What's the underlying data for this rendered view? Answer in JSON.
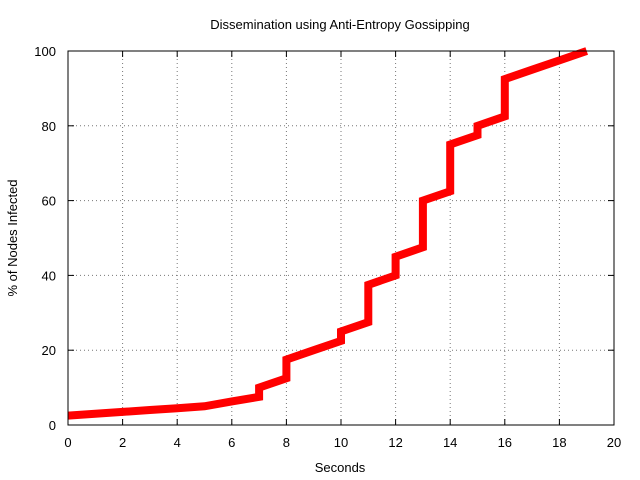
{
  "chart_data": {
    "type": "line",
    "title": "Dissemination using Anti-Entropy Gossipping",
    "xlabel": "Seconds",
    "ylabel": "% of Nodes Infected",
    "xlim": [
      0,
      20
    ],
    "ylim": [
      0,
      100
    ],
    "xticks": [
      "0",
      "2",
      "4",
      "6",
      "8",
      "10",
      "12",
      "14",
      "16",
      "18",
      "20"
    ],
    "yticks": [
      "0",
      "20",
      "40",
      "60",
      "80",
      "100"
    ],
    "grid": true,
    "legend": "none",
    "series": [
      {
        "color": "#ff0000",
        "x": [
          0,
          1,
          2,
          3,
          4,
          5,
          6,
          7,
          7,
          8,
          8,
          9,
          10,
          10,
          11,
          11,
          12,
          12,
          13,
          13,
          14,
          14,
          15,
          15,
          16,
          16,
          17,
          18,
          19
        ],
        "y": [
          2.5,
          3,
          3.5,
          4,
          4.5,
          5,
          6.3,
          7.5,
          10,
          12.5,
          17.5,
          20,
          22.5,
          25,
          27.5,
          37.5,
          40,
          45,
          47.5,
          60,
          62.5,
          75,
          77.5,
          80,
          82.5,
          92.5,
          95,
          97.5,
          100
        ]
      }
    ]
  }
}
